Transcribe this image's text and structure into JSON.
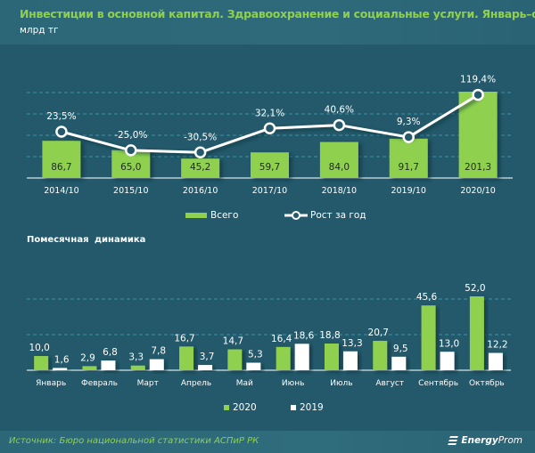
{
  "header": {
    "title": "Инвестиции в  основной капитал. Здравоохранение и социальные услуги. Январь–октябрь",
    "subtitle": "млрд тг"
  },
  "colors": {
    "background": "#23596a",
    "bar_green": "#8fd14f",
    "bar_white": "#ffffff",
    "line": "#ffffff",
    "grid": "#3a93a8",
    "title_green": "#8fd14f"
  },
  "chart_data": [
    {
      "type": "bar+line",
      "title": "Инвестиции в основной капитал. Здравоохранение и социальные услуги. Январь–октябрь",
      "units": "млрд тг",
      "categories": [
        "2014/10",
        "2015/10",
        "2016/10",
        "2017/10",
        "2018/10",
        "2019/10",
        "2020/10"
      ],
      "series": [
        {
          "name": "Всего",
          "kind": "bar",
          "values": [
            86.7,
            65.0,
            45.2,
            59.7,
            84.0,
            91.7,
            201.3
          ],
          "labels": [
            "86,7",
            "65,0",
            "45,2",
            "59,7",
            "84,0",
            "91,7",
            "201,3"
          ]
        },
        {
          "name": "Рост за год",
          "kind": "line",
          "values": [
            23.5,
            -25.0,
            -30.5,
            32.1,
            40.6,
            9.3,
            119.4
          ],
          "labels": [
            "23,5%",
            "-25,0%",
            "-30,5%",
            "32,1%",
            "40,6%",
            "9,3%",
            "119,4%"
          ]
        }
      ],
      "ylim": [
        0,
        210
      ],
      "line_ylim": [
        -60,
        130
      ],
      "grid": true,
      "legend": "bottom-center"
    },
    {
      "type": "bar",
      "title": "Помесячная   динамика",
      "categories": [
        "Январь",
        "Февраль",
        "Март",
        "Апрель",
        "Май",
        "Июнь",
        "Июль",
        "Август",
        "Сентябрь",
        "Октябрь"
      ],
      "series": [
        {
          "name": "2020",
          "values": [
            10.0,
            2.9,
            3.3,
            16.7,
            14.7,
            16.4,
            18.8,
            20.7,
            45.6,
            52.0
          ],
          "labels": [
            "10,0",
            "2,9",
            "3,3",
            "16,7",
            "14,7",
            "16,4",
            "18,8",
            "20,7",
            "45,6",
            "52,0"
          ]
        },
        {
          "name": "2019",
          "values": [
            1.6,
            6.8,
            7.8,
            3.7,
            5.3,
            18.6,
            13.3,
            9.5,
            13.0,
            12.2
          ],
          "labels": [
            "1,6",
            "6,8",
            "7,8",
            "3,7",
            "5,3",
            "18,6",
            "13,3",
            "9,5",
            "13,0",
            "12,2"
          ]
        }
      ],
      "ylim": [
        0,
        55
      ],
      "grid": true,
      "legend": "bottom-center"
    }
  ],
  "footer": {
    "source": "Источник: Бюро национальной  статистики АСПиР РК",
    "brand_bold": "Energy",
    "brand_rest": "Prom"
  }
}
